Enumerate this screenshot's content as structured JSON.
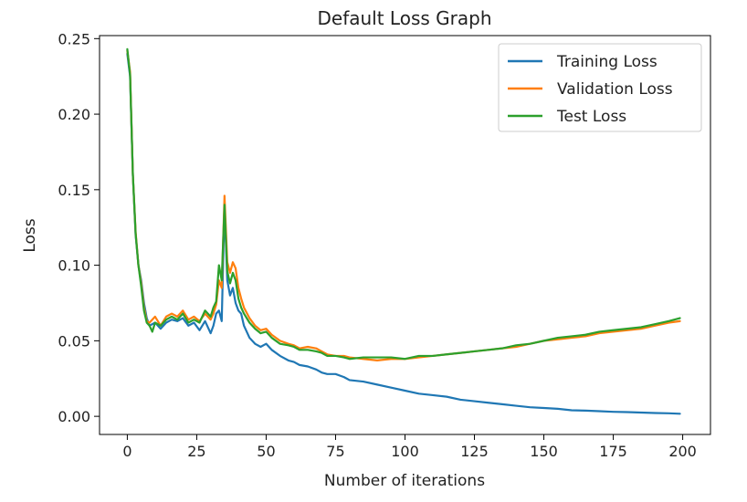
{
  "chart_data": {
    "type": "line",
    "title": "Default Loss Graph",
    "xlabel": "Number of iterations",
    "ylabel": "Loss",
    "xlim": [
      -10,
      210
    ],
    "ylim": [
      -0.012,
      0.252
    ],
    "xticks": [
      0,
      25,
      50,
      75,
      100,
      125,
      150,
      175,
      200
    ],
    "yticks": [
      0.0,
      0.05,
      0.1,
      0.15,
      0.2,
      0.25
    ],
    "ytick_labels": [
      "0.00",
      "0.05",
      "0.10",
      "0.15",
      "0.20",
      "0.25"
    ],
    "grid": false,
    "legend_position": "top-right",
    "series": [
      {
        "name": "Training Loss",
        "color": "#1f77b4",
        "points": [
          [
            0,
            0.24
          ],
          [
            1,
            0.225
          ],
          [
            2,
            0.16
          ],
          [
            3,
            0.12
          ],
          [
            4,
            0.1
          ],
          [
            5,
            0.09
          ],
          [
            6,
            0.075
          ],
          [
            7,
            0.065
          ],
          [
            8,
            0.06
          ],
          [
            10,
            0.062
          ],
          [
            12,
            0.058
          ],
          [
            14,
            0.062
          ],
          [
            16,
            0.064
          ],
          [
            18,
            0.063
          ],
          [
            20,
            0.065
          ],
          [
            22,
            0.06
          ],
          [
            24,
            0.062
          ],
          [
            26,
            0.057
          ],
          [
            28,
            0.063
          ],
          [
            30,
            0.055
          ],
          [
            31,
            0.06
          ],
          [
            32,
            0.068
          ],
          [
            33,
            0.07
          ],
          [
            34,
            0.063
          ],
          [
            35,
            0.14
          ],
          [
            36,
            0.09
          ],
          [
            37,
            0.08
          ],
          [
            38,
            0.085
          ],
          [
            39,
            0.075
          ],
          [
            40,
            0.07
          ],
          [
            41,
            0.068
          ],
          [
            42,
            0.06
          ],
          [
            44,
            0.052
          ],
          [
            46,
            0.048
          ],
          [
            48,
            0.046
          ],
          [
            50,
            0.048
          ],
          [
            52,
            0.044
          ],
          [
            55,
            0.04
          ],
          [
            58,
            0.037
          ],
          [
            60,
            0.036
          ],
          [
            62,
            0.034
          ],
          [
            65,
            0.033
          ],
          [
            68,
            0.031
          ],
          [
            70,
            0.029
          ],
          [
            72,
            0.028
          ],
          [
            75,
            0.028
          ],
          [
            78,
            0.026
          ],
          [
            80,
            0.024
          ],
          [
            85,
            0.023
          ],
          [
            90,
            0.021
          ],
          [
            95,
            0.019
          ],
          [
            100,
            0.017
          ],
          [
            105,
            0.015
          ],
          [
            110,
            0.014
          ],
          [
            115,
            0.013
          ],
          [
            120,
            0.011
          ],
          [
            125,
            0.01
          ],
          [
            130,
            0.009
          ],
          [
            135,
            0.008
          ],
          [
            140,
            0.007
          ],
          [
            145,
            0.006
          ],
          [
            150,
            0.0055
          ],
          [
            155,
            0.005
          ],
          [
            160,
            0.004
          ],
          [
            165,
            0.0038
          ],
          [
            170,
            0.0034
          ],
          [
            175,
            0.003
          ],
          [
            180,
            0.0028
          ],
          [
            185,
            0.0025
          ],
          [
            190,
            0.0022
          ],
          [
            195,
            0.002
          ],
          [
            199,
            0.0017
          ]
        ]
      },
      {
        "name": "Validation Loss",
        "color": "#ff7f0e",
        "points": [
          [
            0,
            0.242
          ],
          [
            1,
            0.228
          ],
          [
            2,
            0.16
          ],
          [
            3,
            0.122
          ],
          [
            4,
            0.1
          ],
          [
            5,
            0.088
          ],
          [
            6,
            0.072
          ],
          [
            7,
            0.063
          ],
          [
            8,
            0.062
          ],
          [
            10,
            0.066
          ],
          [
            12,
            0.06
          ],
          [
            14,
            0.066
          ],
          [
            16,
            0.068
          ],
          [
            18,
            0.066
          ],
          [
            20,
            0.07
          ],
          [
            22,
            0.064
          ],
          [
            24,
            0.066
          ],
          [
            26,
            0.063
          ],
          [
            28,
            0.068
          ],
          [
            30,
            0.064
          ],
          [
            31,
            0.068
          ],
          [
            32,
            0.074
          ],
          [
            33,
            0.09
          ],
          [
            34,
            0.085
          ],
          [
            35,
            0.146
          ],
          [
            36,
            0.102
          ],
          [
            37,
            0.095
          ],
          [
            38,
            0.102
          ],
          [
            39,
            0.098
          ],
          [
            40,
            0.085
          ],
          [
            41,
            0.078
          ],
          [
            42,
            0.072
          ],
          [
            44,
            0.065
          ],
          [
            46,
            0.06
          ],
          [
            48,
            0.057
          ],
          [
            50,
            0.058
          ],
          [
            52,
            0.054
          ],
          [
            55,
            0.05
          ],
          [
            58,
            0.048
          ],
          [
            60,
            0.047
          ],
          [
            62,
            0.045
          ],
          [
            65,
            0.046
          ],
          [
            68,
            0.045
          ],
          [
            70,
            0.043
          ],
          [
            72,
            0.041
          ],
          [
            75,
            0.04
          ],
          [
            78,
            0.04
          ],
          [
            80,
            0.039
          ],
          [
            85,
            0.038
          ],
          [
            90,
            0.037
          ],
          [
            95,
            0.038
          ],
          [
            100,
            0.038
          ],
          [
            105,
            0.039
          ],
          [
            110,
            0.04
          ],
          [
            115,
            0.041
          ],
          [
            120,
            0.042
          ],
          [
            125,
            0.043
          ],
          [
            130,
            0.044
          ],
          [
            135,
            0.045
          ],
          [
            140,
            0.046
          ],
          [
            145,
            0.048
          ],
          [
            150,
            0.05
          ],
          [
            155,
            0.051
          ],
          [
            160,
            0.052
          ],
          [
            165,
            0.053
          ],
          [
            170,
            0.055
          ],
          [
            175,
            0.056
          ],
          [
            180,
            0.057
          ],
          [
            185,
            0.058
          ],
          [
            190,
            0.06
          ],
          [
            195,
            0.062
          ],
          [
            199,
            0.063
          ]
        ]
      },
      {
        "name": "Test Loss",
        "color": "#2ca02c",
        "points": [
          [
            0,
            0.243
          ],
          [
            1,
            0.226
          ],
          [
            2,
            0.16
          ],
          [
            3,
            0.121
          ],
          [
            4,
            0.1
          ],
          [
            5,
            0.086
          ],
          [
            6,
            0.07
          ],
          [
            7,
            0.062
          ],
          [
            8,
            0.06
          ],
          [
            9,
            0.056
          ],
          [
            10,
            0.062
          ],
          [
            12,
            0.06
          ],
          [
            14,
            0.064
          ],
          [
            16,
            0.066
          ],
          [
            18,
            0.064
          ],
          [
            20,
            0.068
          ],
          [
            22,
            0.062
          ],
          [
            24,
            0.064
          ],
          [
            26,
            0.062
          ],
          [
            28,
            0.07
          ],
          [
            30,
            0.066
          ],
          [
            31,
            0.072
          ],
          [
            32,
            0.076
          ],
          [
            33,
            0.1
          ],
          [
            34,
            0.09
          ],
          [
            35,
            0.14
          ],
          [
            36,
            0.096
          ],
          [
            37,
            0.088
          ],
          [
            38,
            0.095
          ],
          [
            39,
            0.09
          ],
          [
            40,
            0.078
          ],
          [
            41,
            0.072
          ],
          [
            42,
            0.068
          ],
          [
            44,
            0.062
          ],
          [
            46,
            0.058
          ],
          [
            48,
            0.055
          ],
          [
            50,
            0.056
          ],
          [
            52,
            0.052
          ],
          [
            55,
            0.048
          ],
          [
            58,
            0.047
          ],
          [
            60,
            0.046
          ],
          [
            62,
            0.044
          ],
          [
            65,
            0.044
          ],
          [
            68,
            0.043
          ],
          [
            70,
            0.042
          ],
          [
            72,
            0.04
          ],
          [
            75,
            0.04
          ],
          [
            78,
            0.039
          ],
          [
            80,
            0.038
          ],
          [
            85,
            0.039
          ],
          [
            90,
            0.039
          ],
          [
            95,
            0.039
          ],
          [
            100,
            0.038
          ],
          [
            105,
            0.04
          ],
          [
            110,
            0.04
          ],
          [
            115,
            0.041
          ],
          [
            120,
            0.042
          ],
          [
            125,
            0.043
          ],
          [
            130,
            0.044
          ],
          [
            135,
            0.045
          ],
          [
            140,
            0.047
          ],
          [
            145,
            0.048
          ],
          [
            150,
            0.05
          ],
          [
            155,
            0.052
          ],
          [
            160,
            0.053
          ],
          [
            165,
            0.054
          ],
          [
            170,
            0.056
          ],
          [
            175,
            0.057
          ],
          [
            180,
            0.058
          ],
          [
            185,
            0.059
          ],
          [
            190,
            0.061
          ],
          [
            195,
            0.063
          ],
          [
            199,
            0.065
          ]
        ]
      }
    ]
  }
}
